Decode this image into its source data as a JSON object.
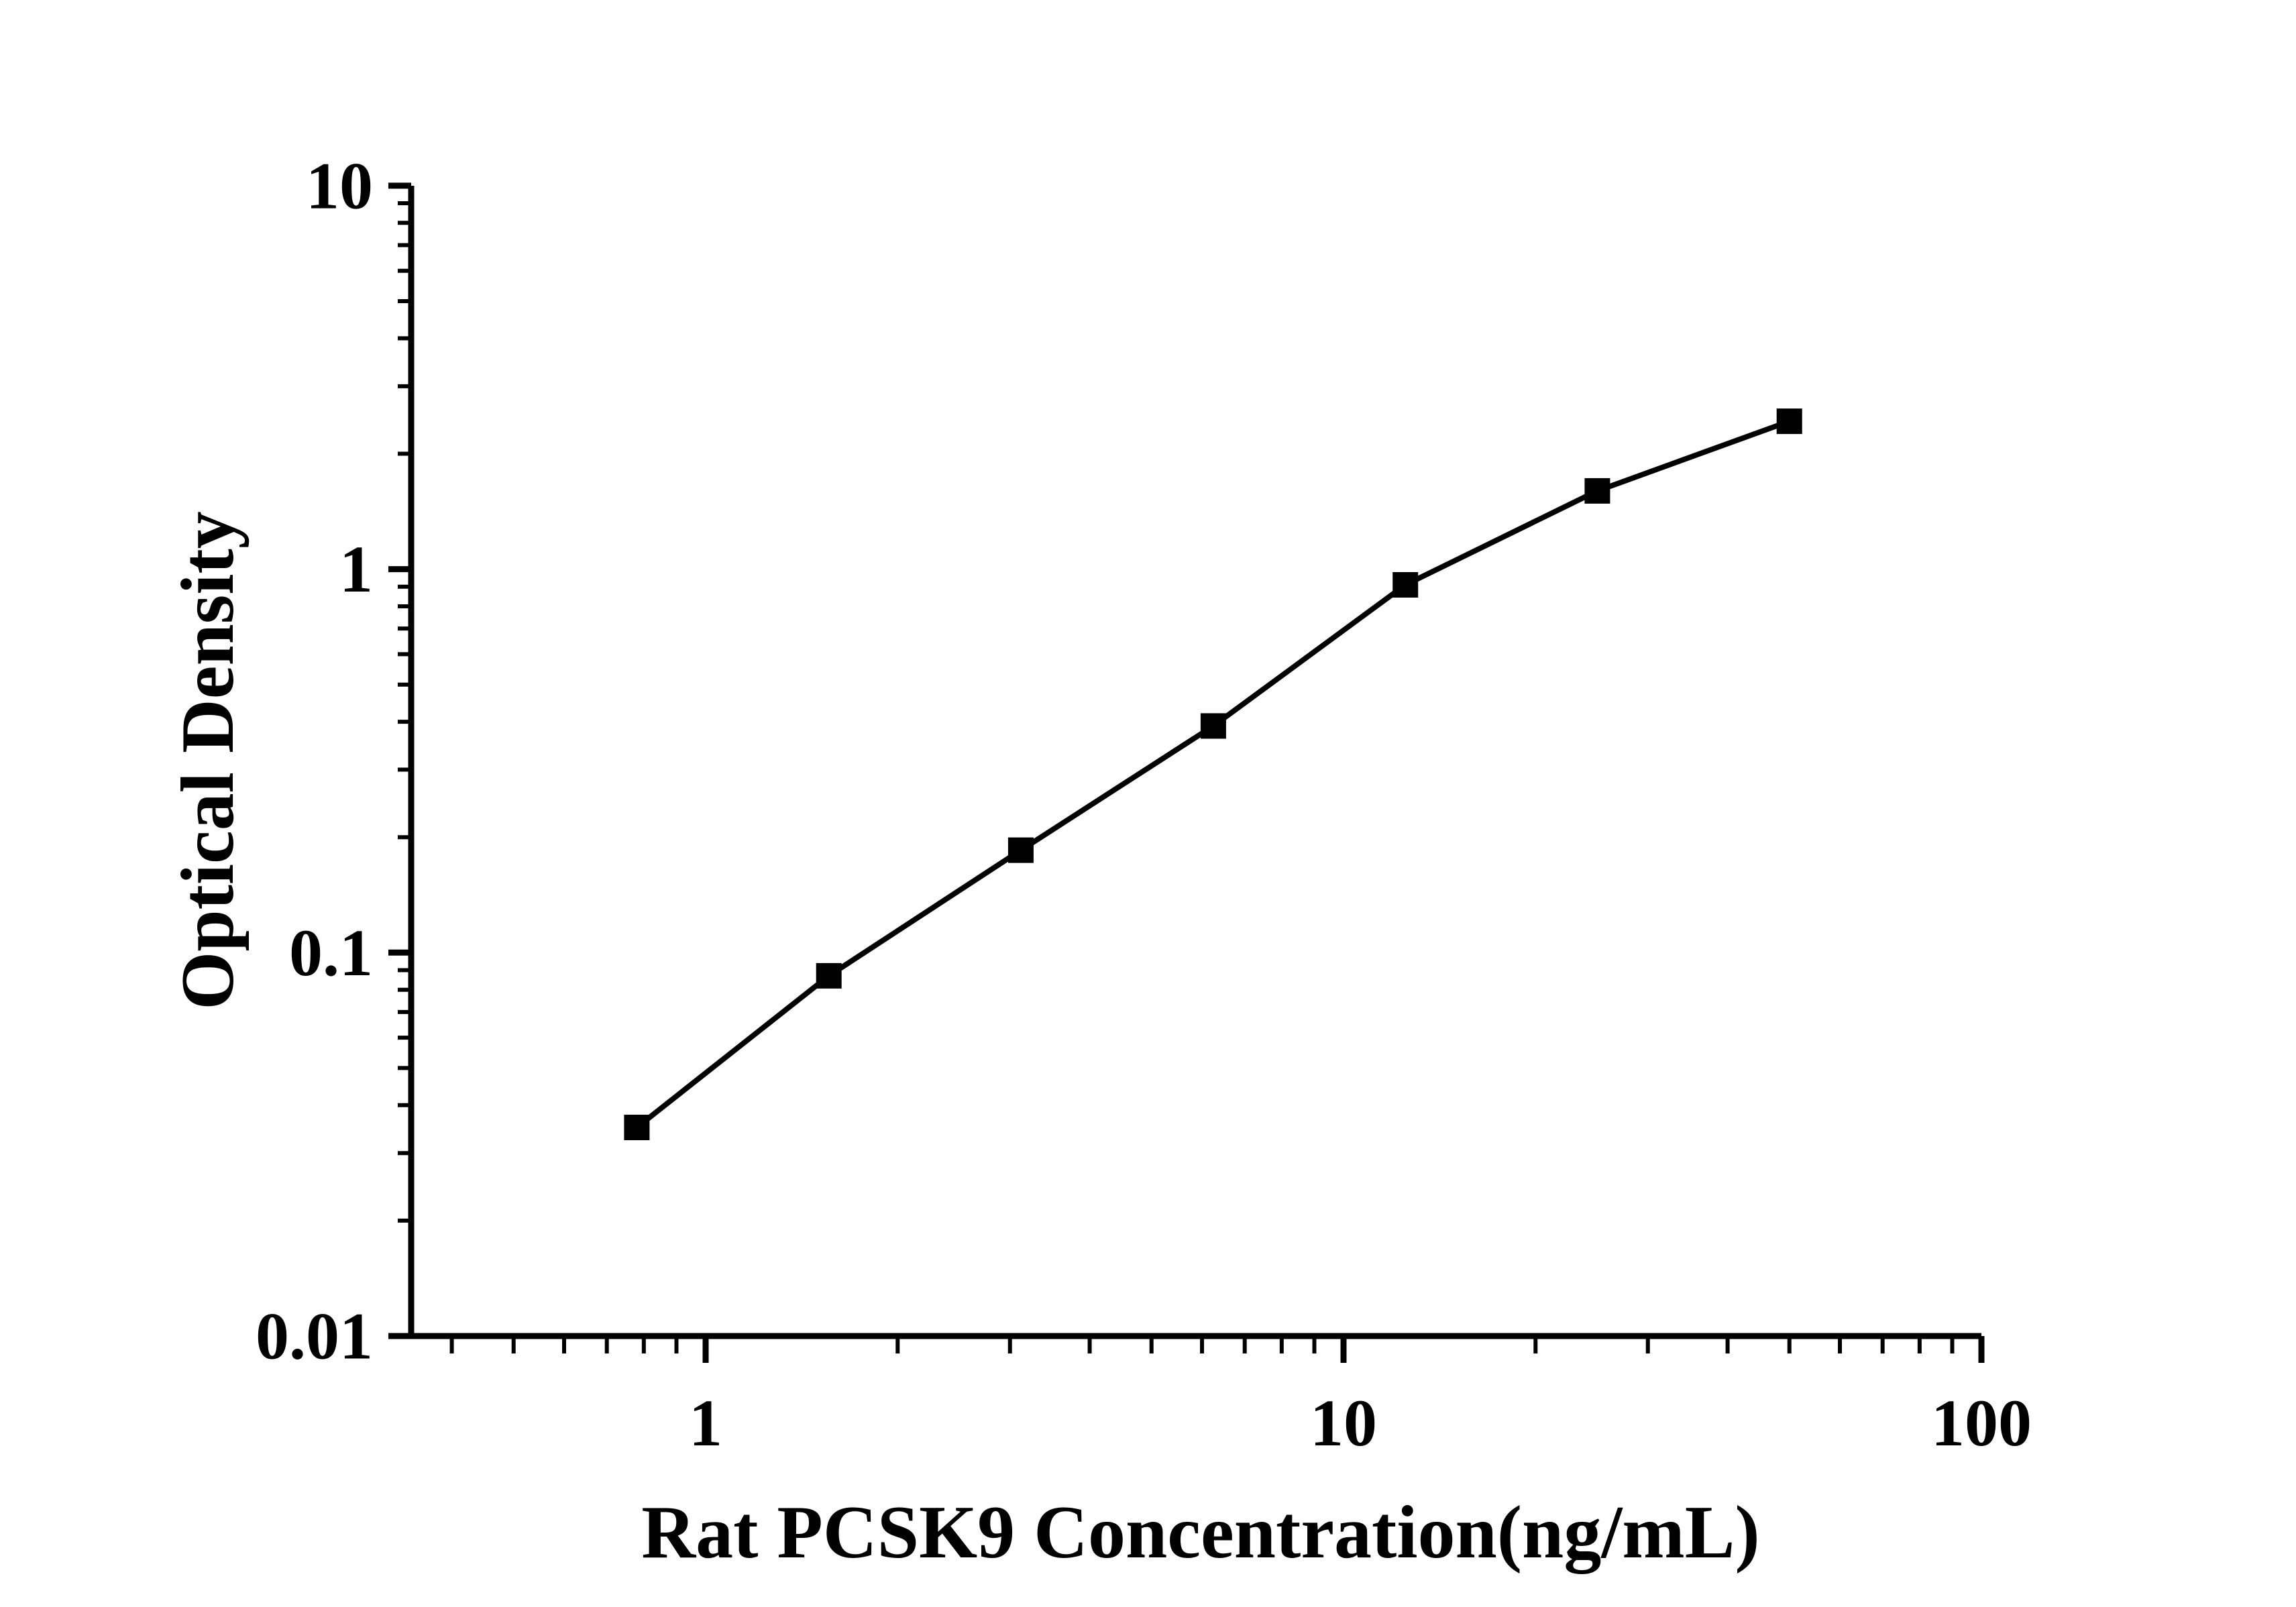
{
  "figure": {
    "background": "#ffffff",
    "foreground": "#000000"
  },
  "chart_data": {
    "type": "line",
    "title": "",
    "xlabel": "Rat PCSK9 Concentration(ng/mL)",
    "ylabel": "Optical Density",
    "x_scale": "log10",
    "y_scale": "log10",
    "grid": false,
    "legend": false,
    "series": [
      {
        "name": "standard-curve",
        "marker": "filled-square",
        "color": "#000000",
        "x": [
          0.78,
          1.56,
          3.12,
          6.25,
          12.5,
          25,
          50
        ],
        "y": [
          0.035,
          0.087,
          0.185,
          0.39,
          0.91,
          1.6,
          2.43
        ]
      }
    ],
    "x_axis": {
      "range": [
        0.345,
        100
      ],
      "major_ticks": [
        1,
        10,
        100
      ],
      "major_tick_labels": [
        "1",
        "10",
        "100"
      ],
      "minor_ticks": "log decade subdivisions (0.4-0.9, 2-9, 20-90)"
    },
    "y_axis": {
      "range": [
        0.01,
        10
      ],
      "major_ticks": [
        0.01,
        0.1,
        1,
        10
      ],
      "major_tick_labels": [
        "0.01",
        "0.1",
        "1",
        "10"
      ],
      "minor_ticks": "log decade subdivisions (2-9 per decade)"
    }
  }
}
